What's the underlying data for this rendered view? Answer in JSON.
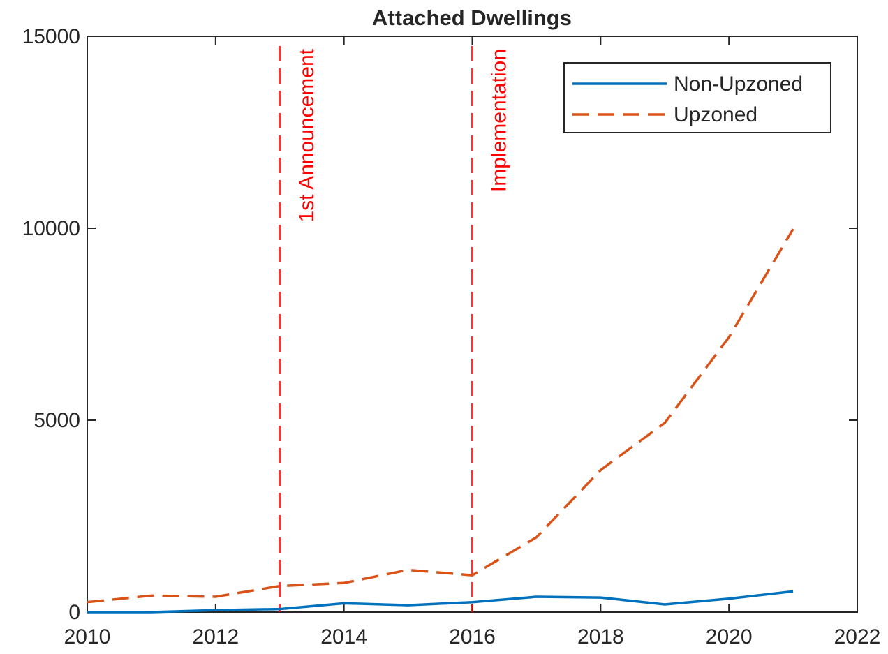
{
  "chart_data": {
    "type": "line",
    "title": "Attached Dwellings",
    "x": [
      2010,
      2011,
      2012,
      2013,
      2014,
      2015,
      2016,
      2017,
      2018,
      2019,
      2020,
      2021
    ],
    "series": [
      {
        "name": "Non-Upzoned",
        "color": "#0072bd",
        "style": "solid",
        "values": [
          0,
          0,
          50,
          80,
          230,
          180,
          260,
          400,
          380,
          200,
          350,
          540
        ]
      },
      {
        "name": "Upzoned",
        "color": "#d95319",
        "style": "dashed",
        "values": [
          260,
          430,
          400,
          680,
          760,
          1100,
          960,
          1950,
          3700,
          4930,
          7160,
          9980
        ]
      }
    ],
    "annotations": [
      {
        "x": 2013,
        "label": "1st Announcement",
        "color": "#ff0000"
      },
      {
        "x": 2016,
        "label": "Implementation",
        "color": "#ff0000"
      }
    ],
    "xlim": [
      2010,
      2022
    ],
    "xticks": [
      2010,
      2012,
      2014,
      2016,
      2018,
      2020,
      2022
    ],
    "ylim": [
      0,
      15000
    ],
    "yticks": [
      0,
      5000,
      10000,
      15000
    ],
    "legend": "top-right",
    "grid": false
  }
}
